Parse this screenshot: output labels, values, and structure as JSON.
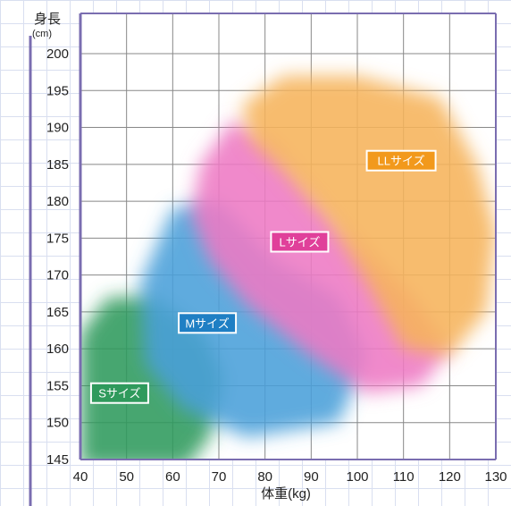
{
  "chart_data": {
    "type": "area",
    "title": "",
    "xlabel": "体重(kg)",
    "ylabel": "身長",
    "ylabel_unit": "(cm)",
    "xlim": [
      40,
      130
    ],
    "ylim": [
      145,
      200
    ],
    "x_ticks": [
      40,
      50,
      60,
      70,
      80,
      90,
      100,
      110,
      120,
      130
    ],
    "y_ticks": [
      145,
      150,
      155,
      160,
      165,
      170,
      175,
      180,
      185,
      190,
      195,
      200
    ],
    "grid": true,
    "zones": [
      {
        "name": "Sサイズ",
        "color": "#2f9a5c",
        "label_color": "#2f9a5c",
        "label_at": [
          48.5,
          154
        ],
        "polygon": [
          [
            40,
            144
          ],
          [
            40,
            162
          ],
          [
            46,
            167
          ],
          [
            56,
            167
          ],
          [
            67,
            162
          ],
          [
            71,
            156
          ],
          [
            68,
            148
          ],
          [
            63,
            144
          ]
        ]
      },
      {
        "name": "Mサイズ",
        "color": "#4a9fda",
        "label_color": "#1f7fc4",
        "label_at": [
          67.5,
          163.5
        ],
        "polygon": [
          [
            53,
            169
          ],
          [
            60,
            179
          ],
          [
            70,
            180
          ],
          [
            82,
            172
          ],
          [
            96,
            167
          ],
          [
            102,
            159
          ],
          [
            96,
            150
          ],
          [
            76,
            148
          ],
          [
            62,
            152
          ],
          [
            54,
            158
          ]
        ]
      },
      {
        "name": "Lサイズ",
        "color": "#ee7ac4",
        "label_color": "#e0409a",
        "label_at": [
          87.5,
          174.5
        ],
        "polygon": [
          [
            64,
            178
          ],
          [
            66,
            185
          ],
          [
            73,
            191
          ],
          [
            82,
            188
          ],
          [
            98,
            176
          ],
          [
            112,
            167
          ],
          [
            120,
            160
          ],
          [
            114,
            155
          ],
          [
            102,
            154
          ],
          [
            90,
            159
          ],
          [
            76,
            166
          ],
          [
            68,
            172
          ]
        ]
      },
      {
        "name": "LLサイズ",
        "color": "#f6b35a",
        "label_color": "#f2991c",
        "label_at": [
          109.5,
          185.5
        ],
        "polygon": [
          [
            75,
            193
          ],
          [
            84,
            197
          ],
          [
            100,
            197
          ],
          [
            118,
            194
          ],
          [
            126,
            185
          ],
          [
            130,
            176
          ],
          [
            128,
            165
          ],
          [
            120,
            159
          ],
          [
            110,
            160
          ],
          [
            102,
            169
          ],
          [
            94,
            177
          ],
          [
            84,
            184
          ],
          [
            77,
            188
          ]
        ]
      }
    ]
  }
}
